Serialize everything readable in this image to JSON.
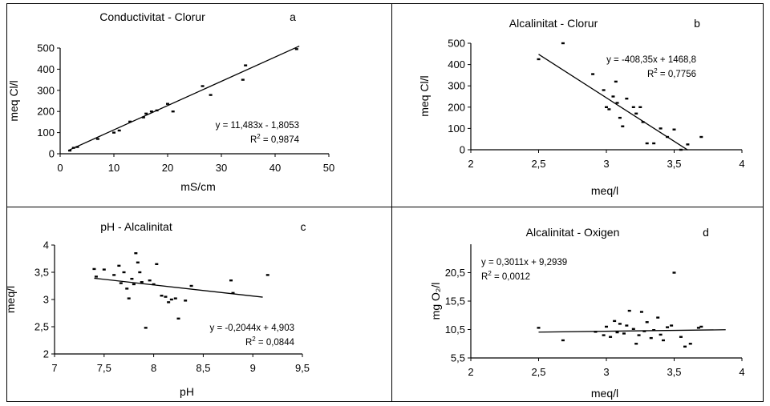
{
  "chart_data": [
    {
      "id": "a",
      "type": "scatter",
      "title": "Conductivitat - Clorur",
      "panel_letter": "a",
      "xlabel": "mS/cm",
      "ylabel": "meq Cl/l",
      "xlim": [
        0,
        50
      ],
      "ylim": [
        0,
        500
      ],
      "xticks": [
        0,
        10,
        20,
        30,
        40,
        50
      ],
      "xtick_labels": [
        "0",
        "10",
        "20",
        "30",
        "40",
        "50"
      ],
      "yticks": [
        0,
        100,
        200,
        300,
        400,
        500
      ],
      "ytick_labels": [
        "0",
        "100",
        "200",
        "300",
        "400",
        "500"
      ],
      "trendline": {
        "slope": 11.483,
        "intercept": -1.8053,
        "x_range": [
          1.5,
          44.5
        ]
      },
      "equation": "y = 11,483x - 1,8053",
      "r2_prefix": "R",
      "r2_sup": "2",
      "r2_value": " = 0,9874",
      "points": [
        {
          "x": 1.8,
          "y": 15
        },
        {
          "x": 2.5,
          "y": 28
        },
        {
          "x": 3.2,
          "y": 32
        },
        {
          "x": 7,
          "y": 70
        },
        {
          "x": 10,
          "y": 100
        },
        {
          "x": 11,
          "y": 110
        },
        {
          "x": 13,
          "y": 152
        },
        {
          "x": 15.5,
          "y": 172
        },
        {
          "x": 16,
          "y": 190
        },
        {
          "x": 17,
          "y": 200
        },
        {
          "x": 18,
          "y": 205
        },
        {
          "x": 20,
          "y": 236
        },
        {
          "x": 21,
          "y": 200
        },
        {
          "x": 26.5,
          "y": 320
        },
        {
          "x": 28,
          "y": 278
        },
        {
          "x": 34,
          "y": 350
        },
        {
          "x": 34.5,
          "y": 418
        },
        {
          "x": 44,
          "y": 495
        }
      ]
    },
    {
      "id": "b",
      "type": "scatter",
      "title": "Alcalinitat - Clorur",
      "panel_letter": "b",
      "xlabel": "meq/l",
      "ylabel": "meq Cl/l",
      "xlim": [
        2,
        4
      ],
      "ylim": [
        0,
        500
      ],
      "xticks": [
        2,
        2.5,
        3,
        3.5,
        4
      ],
      "xtick_labels": [
        "2",
        "2,5",
        "3",
        "3,5",
        "4"
      ],
      "yticks": [
        0,
        100,
        200,
        300,
        400,
        500
      ],
      "ytick_labels": [
        "0",
        "100",
        "200",
        "300",
        "400",
        "500"
      ],
      "trendline": {
        "slope": -408.35,
        "intercept": 1468.8,
        "x_range": [
          2.5,
          3.6
        ]
      },
      "equation": "y = -408,35x + 1468,8",
      "r2_prefix": "R",
      "r2_sup": "2",
      "r2_value": " = 0,7756",
      "points": [
        {
          "x": 2.5,
          "y": 425
        },
        {
          "x": 2.68,
          "y": 500
        },
        {
          "x": 2.9,
          "y": 355
        },
        {
          "x": 2.98,
          "y": 280
        },
        {
          "x": 3.0,
          "y": 200
        },
        {
          "x": 3.02,
          "y": 190
        },
        {
          "x": 3.05,
          "y": 250
        },
        {
          "x": 3.07,
          "y": 320
        },
        {
          "x": 3.08,
          "y": 220
        },
        {
          "x": 3.1,
          "y": 150
        },
        {
          "x": 3.12,
          "y": 110
        },
        {
          "x": 3.15,
          "y": 240
        },
        {
          "x": 3.2,
          "y": 200
        },
        {
          "x": 3.22,
          "y": 170
        },
        {
          "x": 3.25,
          "y": 200
        },
        {
          "x": 3.27,
          "y": 130
        },
        {
          "x": 3.3,
          "y": 30
        },
        {
          "x": 3.35,
          "y": 30
        },
        {
          "x": 3.4,
          "y": 100
        },
        {
          "x": 3.45,
          "y": 60
        },
        {
          "x": 3.5,
          "y": 95
        },
        {
          "x": 3.55,
          "y": 0
        },
        {
          "x": 3.6,
          "y": 25
        },
        {
          "x": 3.7,
          "y": 60
        }
      ]
    },
    {
      "id": "c",
      "type": "scatter",
      "title": "pH - Alcalinitat",
      "panel_letter": "c",
      "xlabel": "pH",
      "ylabel": "meq/l",
      "xlim": [
        7,
        9.5
      ],
      "ylim": [
        2,
        4
      ],
      "xticks": [
        7,
        7.5,
        8,
        8.5,
        9,
        9.5
      ],
      "xtick_labels": [
        "7",
        "7,5",
        "8",
        "8,5",
        "9",
        "9,5"
      ],
      "yticks": [
        2,
        2.5,
        3,
        3.5,
        4
      ],
      "ytick_labels": [
        "2",
        "2,5",
        "3",
        "3,5",
        "4"
      ],
      "trendline": {
        "slope": -0.2044,
        "intercept": 4.903,
        "x_range": [
          7.4,
          9.1
        ]
      },
      "equation": "y = -0,2044x + 4,903",
      "r2_prefix": "R",
      "r2_sup": "2",
      "r2_value": " = 0,0844",
      "points": [
        {
          "x": 7.4,
          "y": 3.56
        },
        {
          "x": 7.42,
          "y": 3.42
        },
        {
          "x": 7.5,
          "y": 3.55
        },
        {
          "x": 7.6,
          "y": 3.45
        },
        {
          "x": 7.65,
          "y": 3.62
        },
        {
          "x": 7.67,
          "y": 3.3
        },
        {
          "x": 7.7,
          "y": 3.5
        },
        {
          "x": 7.73,
          "y": 3.2
        },
        {
          "x": 7.75,
          "y": 3.02
        },
        {
          "x": 7.78,
          "y": 3.38
        },
        {
          "x": 7.8,
          "y": 3.28
        },
        {
          "x": 7.82,
          "y": 3.85
        },
        {
          "x": 7.84,
          "y": 3.68
        },
        {
          "x": 7.86,
          "y": 3.5
        },
        {
          "x": 7.88,
          "y": 3.32
        },
        {
          "x": 7.92,
          "y": 2.48
        },
        {
          "x": 7.96,
          "y": 3.35
        },
        {
          "x": 8.0,
          "y": 3.28
        },
        {
          "x": 8.03,
          "y": 3.65
        },
        {
          "x": 8.08,
          "y": 3.07
        },
        {
          "x": 8.12,
          "y": 3.05
        },
        {
          "x": 8.15,
          "y": 2.95
        },
        {
          "x": 8.18,
          "y": 3.0
        },
        {
          "x": 8.22,
          "y": 3.02
        },
        {
          "x": 8.25,
          "y": 2.65
        },
        {
          "x": 8.32,
          "y": 2.98
        },
        {
          "x": 8.38,
          "y": 3.25
        },
        {
          "x": 8.78,
          "y": 3.35
        },
        {
          "x": 8.8,
          "y": 3.12
        },
        {
          "x": 9.15,
          "y": 3.45
        }
      ]
    },
    {
      "id": "d",
      "type": "scatter",
      "title": "Alcalinitat - Oxigen",
      "panel_letter": "d",
      "xlabel": "meq/l",
      "ylabel": "mg O₂/l",
      "xlim": [
        2,
        4
      ],
      "ylim": [
        5.5,
        25.5
      ],
      "xticks": [
        2,
        2.5,
        3,
        3.5,
        4
      ],
      "xtick_labels": [
        "2",
        "2,5",
        "3",
        "3,5",
        "4"
      ],
      "yticks": [
        5.5,
        10.5,
        15.5,
        20.5
      ],
      "ytick_labels": [
        "5,5",
        "10,5",
        "15,5",
        "20,5"
      ],
      "trendline": {
        "slope": 0.3011,
        "intercept": 9.2939,
        "x_range": [
          2.5,
          3.88
        ]
      },
      "equation": "y = 0,3011x + 9,2939",
      "r2_prefix": "R",
      "r2_sup": "2",
      "r2_value": " = 0,0012",
      "points": [
        {
          "x": 2.5,
          "y": 10.8
        },
        {
          "x": 2.68,
          "y": 8.6
        },
        {
          "x": 2.92,
          "y": 10.1
        },
        {
          "x": 2.98,
          "y": 9.5
        },
        {
          "x": 3.0,
          "y": 11.0
        },
        {
          "x": 3.03,
          "y": 9.2
        },
        {
          "x": 3.06,
          "y": 12.0
        },
        {
          "x": 3.08,
          "y": 10.0
        },
        {
          "x": 3.1,
          "y": 11.5
        },
        {
          "x": 3.13,
          "y": 9.8
        },
        {
          "x": 3.15,
          "y": 11.2
        },
        {
          "x": 3.17,
          "y": 13.8
        },
        {
          "x": 3.2,
          "y": 10.6
        },
        {
          "x": 3.22,
          "y": 8.0
        },
        {
          "x": 3.24,
          "y": 9.5
        },
        {
          "x": 3.26,
          "y": 13.6
        },
        {
          "x": 3.28,
          "y": 10.2
        },
        {
          "x": 3.3,
          "y": 11.8
        },
        {
          "x": 3.33,
          "y": 9.0
        },
        {
          "x": 3.35,
          "y": 10.4
        },
        {
          "x": 3.38,
          "y": 12.6
        },
        {
          "x": 3.4,
          "y": 9.6
        },
        {
          "x": 3.42,
          "y": 8.6
        },
        {
          "x": 3.45,
          "y": 10.9
        },
        {
          "x": 3.48,
          "y": 11.2
        },
        {
          "x": 3.5,
          "y": 20.5
        },
        {
          "x": 3.55,
          "y": 9.2
        },
        {
          "x": 3.58,
          "y": 7.5
        },
        {
          "x": 3.62,
          "y": 8.0
        },
        {
          "x": 3.68,
          "y": 10.8
        },
        {
          "x": 3.7,
          "y": 11.0
        }
      ]
    }
  ]
}
